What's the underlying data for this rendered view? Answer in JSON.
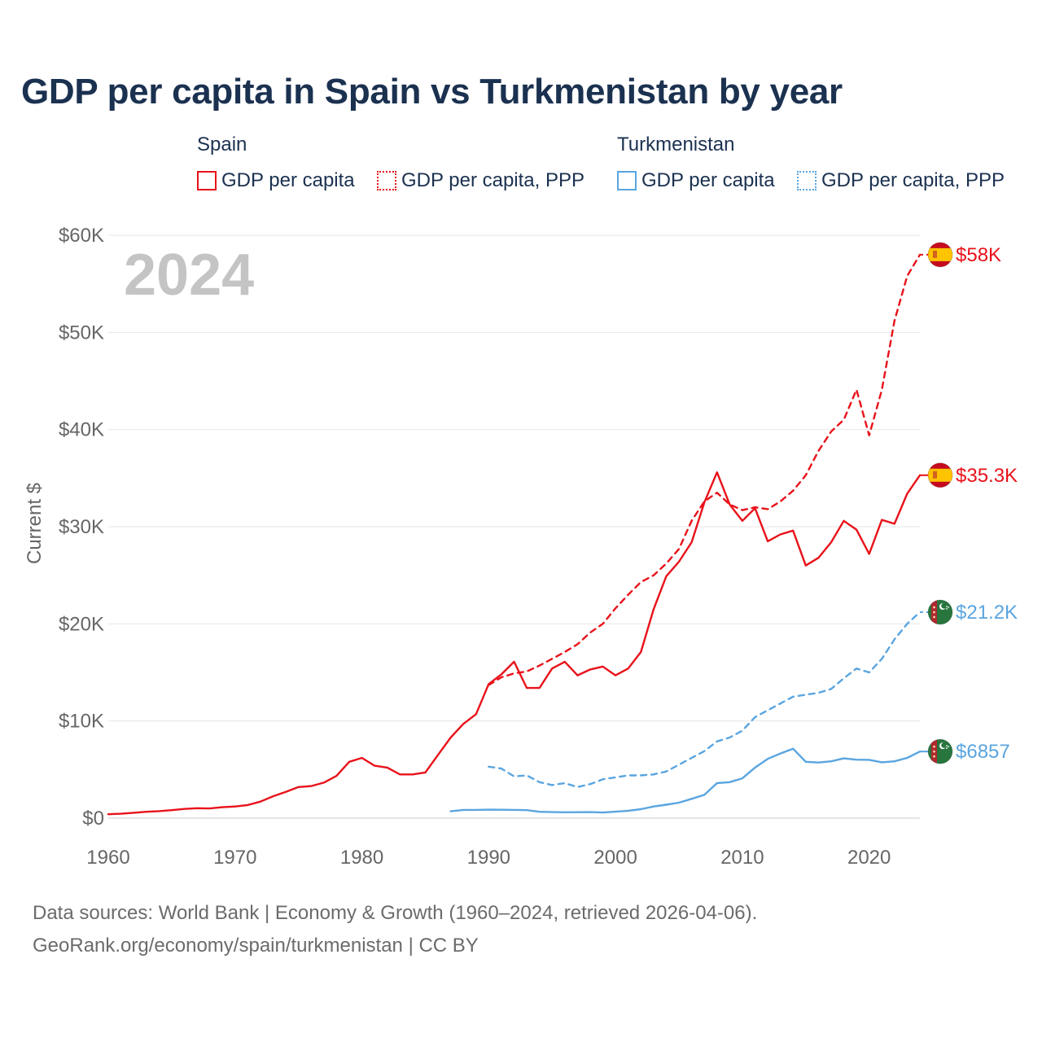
{
  "title": "GDP per capita in Spain vs Turkmenistan by year",
  "year_label": "2024",
  "legend": {
    "groups": [
      {
        "name": "Spain",
        "items": [
          "GDP per capita",
          "GDP per capita, PPP"
        ],
        "color": "#e8121a"
      },
      {
        "name": "Turkmenistan",
        "items": [
          "GDP per capita",
          "GDP per capita, PPP"
        ],
        "color": "#5aa5e0"
      }
    ]
  },
  "footer": {
    "line1": "Data sources: World Bank | Economy & Growth (1960–2024, retrieved 2026-04-06).",
    "line2": "GeoRank.org/economy/spain/turkmenistan | CC BY"
  },
  "chart_data": {
    "type": "line",
    "title": "GDP per capita in Spain vs Turkmenistan by year",
    "xlabel": "",
    "ylabel": "Current $",
    "xlim": [
      1960,
      2024
    ],
    "ylim": [
      0,
      60000
    ],
    "x_ticks": [
      1960,
      1970,
      1980,
      1990,
      2000,
      2010,
      2020
    ],
    "x_tick_labels": [
      "1960",
      "1970",
      "1980",
      "1990",
      "2000",
      "2010",
      "2020"
    ],
    "y_ticks": [
      0,
      10000,
      20000,
      30000,
      40000,
      50000,
      60000
    ],
    "y_tick_labels": [
      "$0",
      "$10K",
      "$20K",
      "$30K",
      "$40K",
      "$50K",
      "$60K"
    ],
    "grid": true,
    "series": [
      {
        "name": "Spain – GDP per capita",
        "country": "Spain",
        "color": "#e8121a",
        "dash": "solid",
        "end_label": "$35.3K",
        "flag": "spain",
        "x": [
          1960,
          1961,
          1962,
          1963,
          1964,
          1965,
          1966,
          1967,
          1968,
          1969,
          1970,
          1971,
          1972,
          1973,
          1974,
          1975,
          1976,
          1977,
          1978,
          1979,
          1980,
          1981,
          1982,
          1983,
          1984,
          1985,
          1986,
          1987,
          1988,
          1989,
          1990,
          1991,
          1992,
          1993,
          1994,
          1995,
          1996,
          1997,
          1998,
          1999,
          2000,
          2001,
          2002,
          2003,
          2004,
          2005,
          2006,
          2007,
          2008,
          2009,
          2010,
          2011,
          2012,
          2013,
          2014,
          2015,
          2016,
          2017,
          2018,
          2019,
          2020,
          2021,
          2022,
          2023,
          2024
        ],
        "values": [
          400,
          450,
          550,
          650,
          720,
          820,
          950,
          1020,
          1000,
          1120,
          1200,
          1350,
          1700,
          2250,
          2700,
          3200,
          3300,
          3650,
          4350,
          5800,
          6200,
          5400,
          5200,
          4500,
          4500,
          4700,
          6500,
          8300,
          9700,
          10700,
          13800,
          14800,
          16100,
          13400,
          13400,
          15400,
          16100,
          14700,
          15300,
          15600,
          14700,
          15400,
          17100,
          21500,
          24900,
          26400,
          28400,
          32500,
          35600,
          32300,
          30600,
          31900,
          28500,
          29200,
          29600,
          26000,
          26800,
          28400,
          30600,
          29700,
          27200,
          30700,
          30300,
          33400,
          35300
        ]
      },
      {
        "name": "Spain – GDP per capita, PPP",
        "country": "Spain",
        "color": "#e8121a",
        "dash": "dashed",
        "end_label": "$58K",
        "flag": "spain",
        "x": [
          1990,
          1991,
          1992,
          1993,
          1994,
          1995,
          1996,
          1997,
          1998,
          1999,
          2000,
          2001,
          2002,
          2003,
          2004,
          2005,
          2006,
          2007,
          2008,
          2009,
          2010,
          2011,
          2012,
          2013,
          2014,
          2015,
          2016,
          2017,
          2018,
          2019,
          2020,
          2021,
          2022,
          2023,
          2024
        ],
        "values": [
          13700,
          14500,
          14900,
          15100,
          15700,
          16400,
          17100,
          17900,
          19100,
          20000,
          21600,
          23000,
          24300,
          25000,
          26200,
          27700,
          30600,
          32600,
          33500,
          32300,
          31700,
          32000,
          31800,
          32600,
          33700,
          35300,
          37800,
          39800,
          41000,
          44100,
          39400,
          44100,
          51200,
          55800,
          58000
        ]
      },
      {
        "name": "Turkmenistan – GDP per capita",
        "country": "Turkmenistan",
        "color": "#5aa5e0",
        "dash": "solid",
        "end_label": "$6857",
        "flag": "turkmenistan",
        "x": [
          1987,
          1988,
          1989,
          1990,
          1991,
          1992,
          1993,
          1994,
          1995,
          1996,
          1997,
          1998,
          1999,
          2000,
          2001,
          2002,
          2003,
          2004,
          2005,
          2006,
          2007,
          2008,
          2009,
          2010,
          2011,
          2012,
          2013,
          2014,
          2015,
          2016,
          2017,
          2018,
          2019,
          2020,
          2021,
          2022,
          2023,
          2024
        ],
        "values": [
          700,
          850,
          850,
          870,
          860,
          850,
          820,
          650,
          620,
          600,
          610,
          620,
          580,
          660,
          760,
          920,
          1200,
          1380,
          1590,
          1990,
          2400,
          3600,
          3700,
          4100,
          5200,
          6100,
          6650,
          7150,
          5800,
          5720,
          5850,
          6150,
          6020,
          6000,
          5750,
          5850,
          6200,
          6857
        ]
      },
      {
        "name": "Turkmenistan – GDP per capita, PPP",
        "country": "Turkmenistan",
        "color": "#5aa5e0",
        "dash": "dashed",
        "end_label": "$21.2K",
        "flag": "turkmenistan",
        "x": [
          1990,
          1991,
          1992,
          1993,
          1994,
          1995,
          1996,
          1997,
          1998,
          1999,
          2000,
          2001,
          2002,
          2003,
          2004,
          2005,
          2006,
          2007,
          2008,
          2009,
          2010,
          2011,
          2012,
          2013,
          2014,
          2015,
          2016,
          2017,
          2018,
          2019,
          2020,
          2021,
          2022,
          2023,
          2024
        ],
        "values": [
          5300,
          5100,
          4300,
          4400,
          3700,
          3400,
          3600,
          3200,
          3500,
          4000,
          4200,
          4400,
          4400,
          4500,
          4800,
          5500,
          6200,
          6900,
          7900,
          8300,
          9000,
          10400,
          11100,
          11800,
          12500,
          12700,
          12900,
          13300,
          14400,
          15400,
          15000,
          16400,
          18400,
          20000,
          21200
        ]
      }
    ]
  }
}
